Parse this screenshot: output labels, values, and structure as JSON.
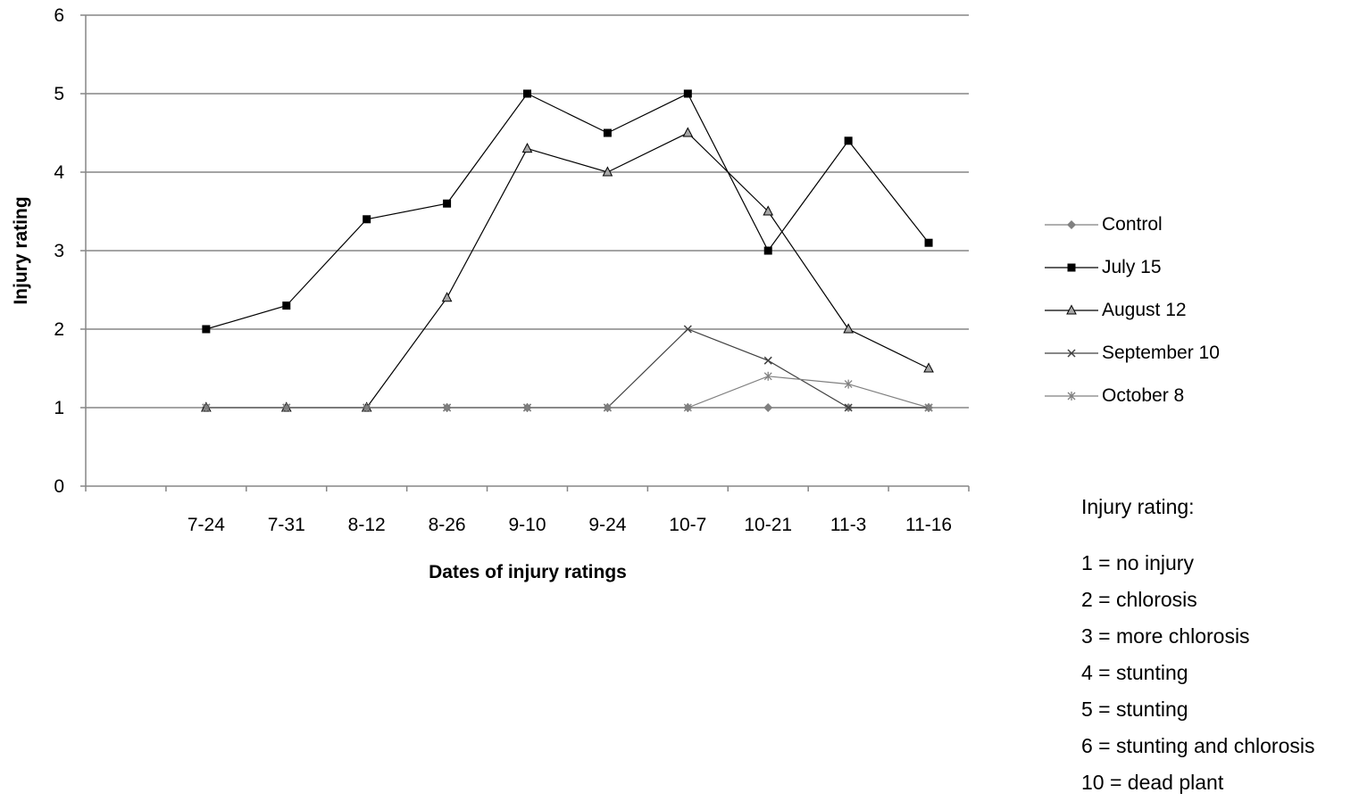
{
  "chart_data": {
    "type": "line",
    "title": "",
    "xlabel": "Dates of injury ratings",
    "ylabel": "Injury rating",
    "categories": [
      "7-24",
      "7-31",
      "8-12",
      "8-26",
      "9-10",
      "9-24",
      "10-7",
      "10-21",
      "11-3",
      "11-16"
    ],
    "ylim": [
      0,
      6
    ],
    "yticks": [
      "0",
      "1",
      "2",
      "3",
      "4",
      "5",
      "6"
    ],
    "grid": "horizontal",
    "legend_position": "right",
    "series": [
      {
        "name": "Control",
        "marker": "diamond",
        "color": "#808080",
        "values": [
          1,
          1,
          1,
          1,
          1,
          1,
          1,
          1,
          1,
          1
        ]
      },
      {
        "name": "July 15",
        "marker": "square",
        "color": "#000000",
        "values": [
          2,
          2.3,
          3.4,
          3.6,
          5,
          4.5,
          5,
          3,
          4.4,
          3.1
        ]
      },
      {
        "name": "August 12",
        "marker": "triangle",
        "color": "#000000",
        "values": [
          1,
          1,
          1,
          2.4,
          4.3,
          4,
          4.5,
          3.5,
          2,
          1.5
        ]
      },
      {
        "name": "September 10",
        "marker": "x",
        "color": "#404040",
        "values": [
          1,
          1,
          1,
          1,
          1,
          1,
          2,
          1.6,
          1,
          1
        ]
      },
      {
        "name": "October 8",
        "marker": "star",
        "color": "#808080",
        "values": [
          1,
          1,
          1,
          1,
          1,
          1,
          1,
          1.4,
          1.3,
          1
        ]
      }
    ]
  },
  "notes": {
    "title": "Injury rating:",
    "lines": [
      "1 = no injury",
      "2 = chlorosis",
      "3 = more chlorosis",
      "4 = stunting",
      "5 = stunting",
      "6 = stunting and chlorosis",
      "10 = dead plant"
    ]
  }
}
